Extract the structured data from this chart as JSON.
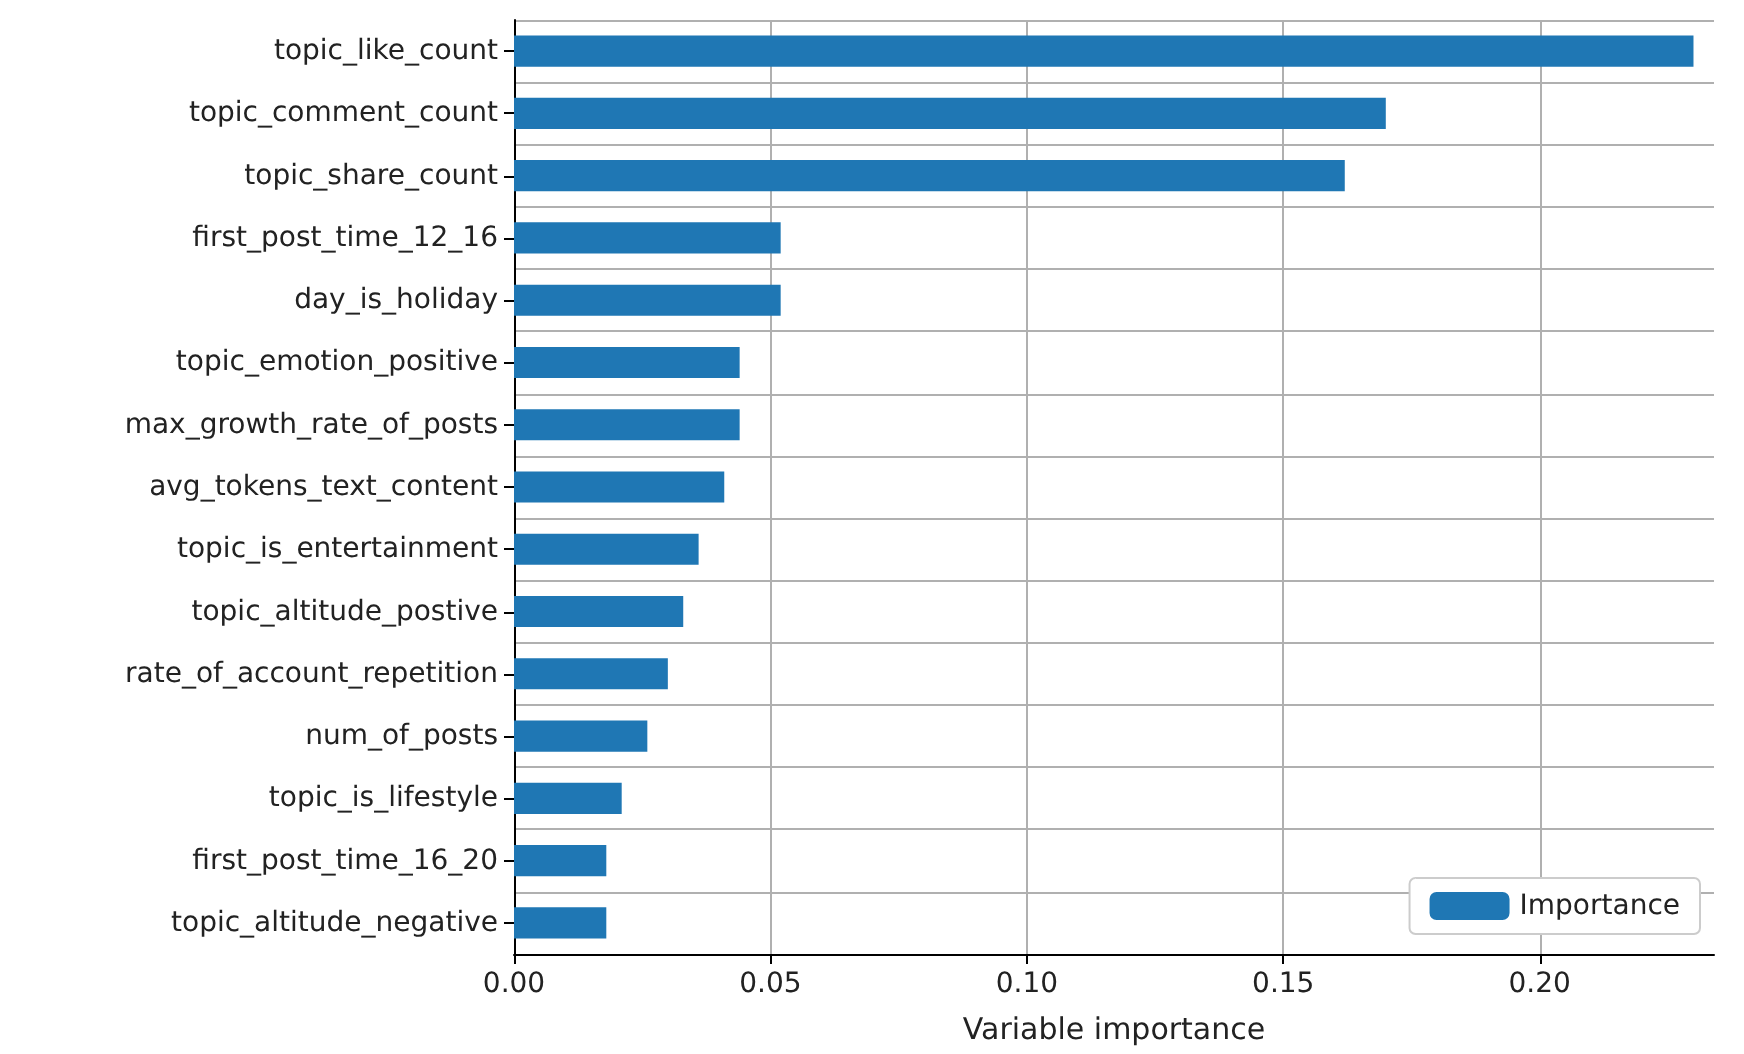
{
  "chart_data": {
    "type": "bar",
    "orientation": "horizontal",
    "xlabel": "Variable importance",
    "categories": [
      "topic_like_count",
      "topic_comment_count",
      "topic_share_count",
      "first_post_time_12_16",
      "day_is_holiday",
      "topic_emotion_positive",
      "max_growth_rate_of_posts",
      "avg_tokens_text_content",
      "topic_is_entertainment",
      "topic_altitude_postive",
      "rate_of_account_repetition",
      "num_of_posts",
      "topic_is_lifestyle",
      "first_post_time_16_20",
      "topic_altitude_negative"
    ],
    "series": [
      {
        "name": "Importance",
        "color": "#1f77b4",
        "values": [
          0.23,
          0.17,
          0.162,
          0.052,
          0.052,
          0.044,
          0.044,
          0.041,
          0.036,
          0.033,
          0.03,
          0.026,
          0.021,
          0.018,
          0.018
        ]
      }
    ],
    "xlim": [
      0,
      0.234
    ],
    "xticks": [
      {
        "value": 0,
        "label": "0.00"
      },
      {
        "value": 0.05,
        "label": "0.05"
      },
      {
        "value": 0.1,
        "label": "0.10"
      },
      {
        "value": 0.15,
        "label": "0.15"
      },
      {
        "value": 0.2,
        "label": "0.20"
      }
    ],
    "grid": true,
    "legend": "bottom right"
  }
}
